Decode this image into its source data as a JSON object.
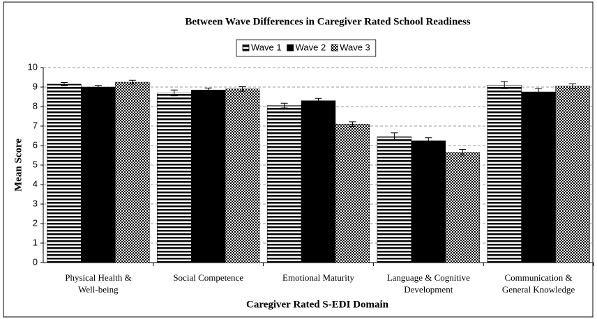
{
  "chart_data": {
    "type": "bar",
    "title": "Between Wave Differences in Caregiver Rated School Readiness",
    "x_label": "Caregiver Rated S-EDI Domain",
    "y_label": "Mean Score",
    "categories": [
      [
        "Physical Health &",
        "Well-being"
      ],
      [
        "Social Competence"
      ],
      [
        "Emotional Maturity"
      ],
      [
        "Language & Cognitive",
        "Development"
      ],
      [
        "Communication &",
        "General Knowledge"
      ]
    ],
    "series": [
      {
        "name": "Wave 1",
        "color": "#000000",
        "pattern": "horizontal",
        "values": [
          9.15,
          8.7,
          8.05,
          6.45,
          9.1
        ],
        "errors": [
          0.08,
          0.15,
          0.12,
          0.2,
          0.18
        ]
      },
      {
        "name": "Wave 2",
        "color": "#000000",
        "pattern": "solid",
        "values": [
          9.0,
          8.85,
          8.3,
          6.25,
          8.75
        ],
        "errors": [
          0.08,
          0.1,
          0.12,
          0.15,
          0.18
        ]
      },
      {
        "name": "Wave 3",
        "color": "#000000",
        "pattern": "checker",
        "values": [
          9.25,
          8.9,
          7.1,
          5.65,
          9.05
        ],
        "errors": [
          0.1,
          0.12,
          0.12,
          0.15,
          0.12
        ]
      }
    ],
    "ylim": [
      0,
      10
    ],
    "yticks": [
      0,
      1,
      2,
      3,
      4,
      5,
      6,
      7,
      8,
      9,
      10
    ],
    "grid": true,
    "legend": "top"
  }
}
